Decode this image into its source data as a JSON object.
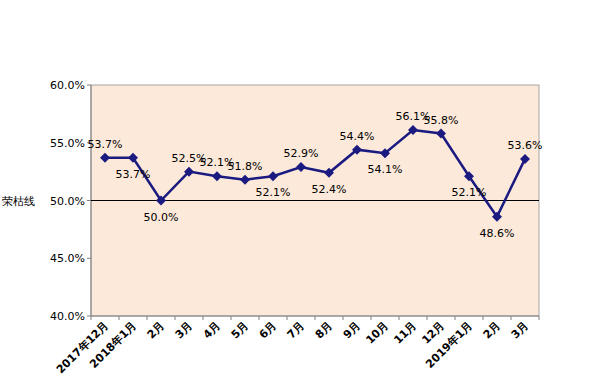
{
  "chart_data": {
    "type": "line",
    "categories": [
      "2017年12月",
      "2018年1月",
      "2月",
      "3月",
      "4月",
      "5月",
      "6月",
      "7月",
      "8月",
      "9月",
      "10月",
      "11月",
      "12月",
      "2019年1月",
      "2月",
      "3月"
    ],
    "values": [
      53.7,
      53.7,
      50.0,
      52.5,
      52.1,
      51.8,
      52.1,
      52.9,
      52.4,
      54.4,
      54.1,
      56.1,
      55.8,
      52.1,
      48.6,
      53.6
    ],
    "value_labels": [
      "53.7%",
      "53.7%",
      "50.0%",
      "52.5%",
      "52.1%",
      "51.8%",
      "52.1%",
      "52.9%",
      "52.4%",
      "54.4%",
      "54.1%",
      "56.1%",
      "55.8%",
      "52.1%",
      "48.6%",
      "53.6%"
    ],
    "color": "#1a1a80",
    "marker": "diamond",
    "data_labels": true,
    "ylim": [
      40,
      60
    ],
    "yticks": [
      {
        "value": 40,
        "label": "40.0%"
      },
      {
        "value": 45,
        "label": "45.0%"
      },
      {
        "value": 50,
        "label": "50.0%"
      },
      {
        "value": 55,
        "label": "55.0%"
      },
      {
        "value": 60,
        "label": "60.0%"
      }
    ],
    "reference_line": {
      "value": 50,
      "label": "荣枯线"
    },
    "grid": false
  }
}
